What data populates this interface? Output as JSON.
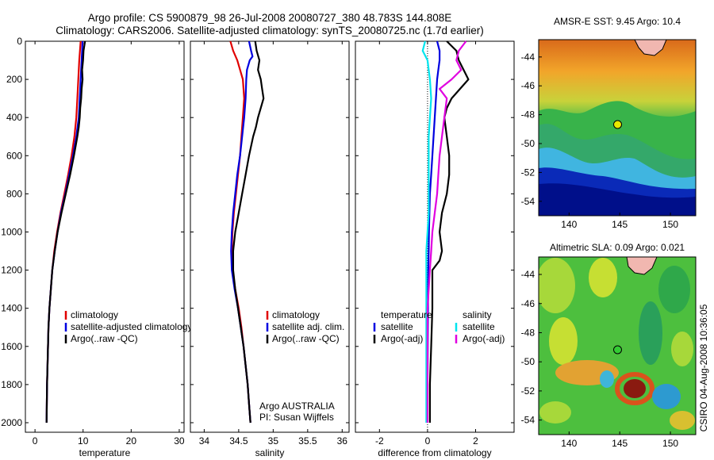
{
  "header": {
    "line1": "Argo profile: CS 5900879_98 26-Jul-2008 20080727_380 48.783S 144.808E",
    "line2": "Climatology: CARS2006. Satellite-adjusted climatology: synTS_20080725.nc (1.7d earlier)"
  },
  "side_label": "CSIRO 04-Aug-2008 10:36:05",
  "colors": {
    "red": "#e00000",
    "blue": "#0000e0",
    "black": "#000000",
    "cyan": "#00e5ee",
    "magenta": "#e000e0",
    "sst_marker": "#e8e800",
    "sla_marker": "#33cc33"
  },
  "chart_data": [
    {
      "type": "line",
      "xlabel": "temperature",
      "xlim": [
        -2,
        31
      ],
      "ylim": [
        0,
        2050
      ],
      "xticks": [
        "0",
        "10",
        "20",
        "30"
      ],
      "yticks": [
        "0",
        "200",
        "400",
        "600",
        "800",
        "1000",
        "1200",
        "1400",
        "1600",
        "1800",
        "2000"
      ],
      "legend": [
        "climatology",
        "satellite-adjusted climatology",
        "Argo(..raw -QC)"
      ],
      "series": [
        {
          "name": "climatology",
          "color": "red",
          "depth": [
            0,
            100,
            200,
            300,
            400,
            500,
            600,
            700,
            800,
            900,
            1000,
            1100,
            1200,
            1300,
            1400,
            1500,
            1600,
            1700,
            1800,
            1900,
            2000
          ],
          "values": [
            9.5,
            9.2,
            9.0,
            8.8,
            8.6,
            8.2,
            7.6,
            6.9,
            6.1,
            5.3,
            4.6,
            4.0,
            3.6,
            3.3,
            3.0,
            2.8,
            2.7,
            2.6,
            2.5,
            2.45,
            2.4
          ]
        },
        {
          "name": "satellite-adjusted climatology",
          "color": "blue",
          "depth": [
            0,
            100,
            200,
            300,
            400,
            500,
            600,
            700,
            800,
            900,
            1000,
            1100,
            1200,
            1300,
            1400,
            1500,
            1600,
            1700,
            1800,
            1900,
            2000
          ],
          "values": [
            9.9,
            9.7,
            9.5,
            9.3,
            9.1,
            8.6,
            7.9,
            7.1,
            6.3,
            5.4,
            4.7,
            4.1,
            3.6,
            3.3,
            3.0,
            2.8,
            2.7,
            2.6,
            2.5,
            2.45,
            2.4
          ]
        },
        {
          "name": "Argo(..raw -QC)",
          "color": "black",
          "depth": [
            0,
            50,
            100,
            150,
            200,
            250,
            300,
            350,
            400,
            450,
            500,
            600,
            700,
            800,
            900,
            1000,
            1100,
            1200,
            1300,
            1400,
            1500,
            1600,
            1800,
            2000
          ],
          "values": [
            10.4,
            10.1,
            10.0,
            9.8,
            9.9,
            9.7,
            9.6,
            9.4,
            9.3,
            9.1,
            8.8,
            8.1,
            7.3,
            6.4,
            5.5,
            4.7,
            4.1,
            3.6,
            3.3,
            3.0,
            2.8,
            2.7,
            2.5,
            2.4
          ]
        }
      ]
    },
    {
      "type": "line",
      "xlabel": "salinity",
      "xlim": [
        33.8,
        36.1
      ],
      "ylim": [
        0,
        2050
      ],
      "xticks": [
        "34",
        "34.5",
        "35",
        "35.5",
        "36"
      ],
      "legend": [
        "climatology",
        "satellite adj. clim.",
        "Argo(..raw -QC)"
      ],
      "annotation": [
        "Argo AUSTRALIA",
        "PI: Susan Wijffels"
      ],
      "series": [
        {
          "name": "climatology",
          "color": "red",
          "depth": [
            0,
            50,
            100,
            200,
            300,
            400,
            500,
            600,
            700,
            800,
            900,
            1000,
            1100,
            1200,
            1300,
            1400,
            1500,
            1600,
            1700,
            1800,
            1900,
            2000
          ],
          "values": [
            34.38,
            34.42,
            34.48,
            34.56,
            34.58,
            34.56,
            34.54,
            34.52,
            34.49,
            34.46,
            34.43,
            34.41,
            34.4,
            34.41,
            34.45,
            34.5,
            34.54,
            34.57,
            34.6,
            34.63,
            34.65,
            34.67
          ]
        },
        {
          "name": "satellite adj. clim.",
          "color": "blue",
          "depth": [
            0,
            50,
            80,
            100,
            150,
            200,
            300,
            400,
            500,
            600,
            700,
            800,
            900,
            1000,
            1100,
            1200,
            1300,
            1400,
            1500,
            1600,
            1700,
            1800,
            1900,
            2000
          ],
          "values": [
            34.65,
            34.68,
            34.7,
            34.66,
            34.62,
            34.61,
            34.6,
            34.58,
            34.55,
            34.52,
            34.48,
            34.45,
            34.42,
            34.4,
            34.39,
            34.4,
            34.44,
            34.49,
            34.53,
            34.57,
            34.6,
            34.63,
            34.65,
            34.67
          ]
        },
        {
          "name": "Argo(..raw -QC)",
          "color": "black",
          "depth": [
            0,
            50,
            100,
            150,
            200,
            250,
            300,
            350,
            400,
            450,
            500,
            600,
            700,
            800,
            900,
            1000,
            1100,
            1200,
            1300,
            1400,
            1500,
            1600,
            1700,
            1800,
            1900,
            2000
          ],
          "values": [
            34.74,
            34.76,
            34.8,
            34.78,
            34.82,
            34.84,
            34.86,
            34.82,
            34.78,
            34.75,
            34.71,
            34.65,
            34.6,
            34.55,
            34.5,
            34.45,
            34.42,
            34.42,
            34.45,
            34.49,
            34.53,
            34.57,
            34.6,
            34.63,
            34.65,
            34.67
          ]
        }
      ]
    },
    {
      "type": "line",
      "xlabel": "difference from climatology",
      "xlim": [
        -3,
        3.6
      ],
      "ylim": [
        0,
        2050
      ],
      "xticks": [
        "-2",
        "0",
        "2"
      ],
      "legend_left_title": "temperature",
      "legend_right_title": "salinity",
      "legend": [
        "satellite",
        "Argo(-adj)",
        "satellite",
        "Argo(-adj)"
      ],
      "series": [
        {
          "name": "temperature satellite",
          "color": "blue",
          "depth": [
            0,
            50,
            100,
            150,
            200,
            300,
            400,
            500,
            600,
            700,
            800,
            900,
            1000,
            1100,
            1200,
            1400,
            1600,
            1800,
            2000
          ],
          "values": [
            0.4,
            0.5,
            0.5,
            0.45,
            0.4,
            0.35,
            0.3,
            0.25,
            0.2,
            0.15,
            0.1,
            0.08,
            0.06,
            0.05,
            0.03,
            0.02,
            0.01,
            0.0,
            0.0
          ]
        },
        {
          "name": "temperature Argo(-adj)",
          "color": "black",
          "depth": [
            0,
            50,
            100,
            150,
            200,
            300,
            350,
            400,
            500,
            600,
            700,
            800,
            900,
            1000,
            1100,
            1150,
            1200,
            1400,
            1600,
            1800,
            2000
          ],
          "values": [
            0.8,
            1.2,
            1.3,
            1.5,
            1.7,
            1.0,
            0.8,
            0.7,
            0.8,
            0.9,
            0.9,
            0.8,
            0.6,
            0.5,
            0.6,
            0.5,
            0.2,
            0.2,
            0.15,
            0.1,
            0.1
          ]
        },
        {
          "name": "salinity satellite",
          "color": "cyan",
          "depth": [
            0,
            50,
            100,
            150,
            200,
            300,
            400,
            500,
            600,
            700,
            800,
            900,
            1000,
            1100,
            1200,
            1400,
            1600,
            1800,
            2000
          ],
          "values": [
            -0.1,
            -0.2,
            0.0,
            0.05,
            0.1,
            0.15,
            0.1,
            0.05,
            0.05,
            0.05,
            0.05,
            0.05,
            0.0,
            -0.05,
            -0.05,
            -0.05,
            -0.05,
            -0.05,
            -0.05
          ]
        },
        {
          "name": "salinity Argo(-adj)",
          "color": "magenta",
          "depth": [
            0,
            50,
            100,
            150,
            200,
            250,
            300,
            400,
            500,
            600,
            700,
            800,
            900,
            1000,
            1100,
            1200,
            1400,
            1600,
            1800,
            2000
          ],
          "values": [
            1.6,
            1.3,
            1.2,
            1.4,
            1.0,
            0.5,
            0.8,
            0.7,
            0.6,
            0.5,
            0.45,
            0.4,
            0.3,
            0.2,
            0.15,
            0.1,
            0.0,
            0.0,
            0.0,
            0.0
          ]
        }
      ]
    },
    {
      "type": "heatmap",
      "title": "AMSR-E SST: 9.45 Argo: 10.4",
      "xlim": [
        137,
        152.5
      ],
      "ylim": [
        -55,
        -42.8
      ],
      "xticks": [
        "140",
        "145",
        "150"
      ],
      "yticks": [
        "-44",
        "-46",
        "-48",
        "-50",
        "-52",
        "-54"
      ],
      "marker": {
        "lon": 144.8,
        "lat": -48.78
      }
    },
    {
      "type": "heatmap",
      "title": "Altimetric SLA: 0.09 Argo: 0.021",
      "xlim": [
        137,
        152.5
      ],
      "ylim": [
        -55,
        -42.8
      ],
      "xticks": [
        "140",
        "145",
        "150"
      ],
      "yticks": [
        "-44",
        "-46",
        "-48",
        "-50",
        "-52",
        "-54"
      ],
      "marker": {
        "lon": 144.8,
        "lat": -48.78
      }
    }
  ]
}
